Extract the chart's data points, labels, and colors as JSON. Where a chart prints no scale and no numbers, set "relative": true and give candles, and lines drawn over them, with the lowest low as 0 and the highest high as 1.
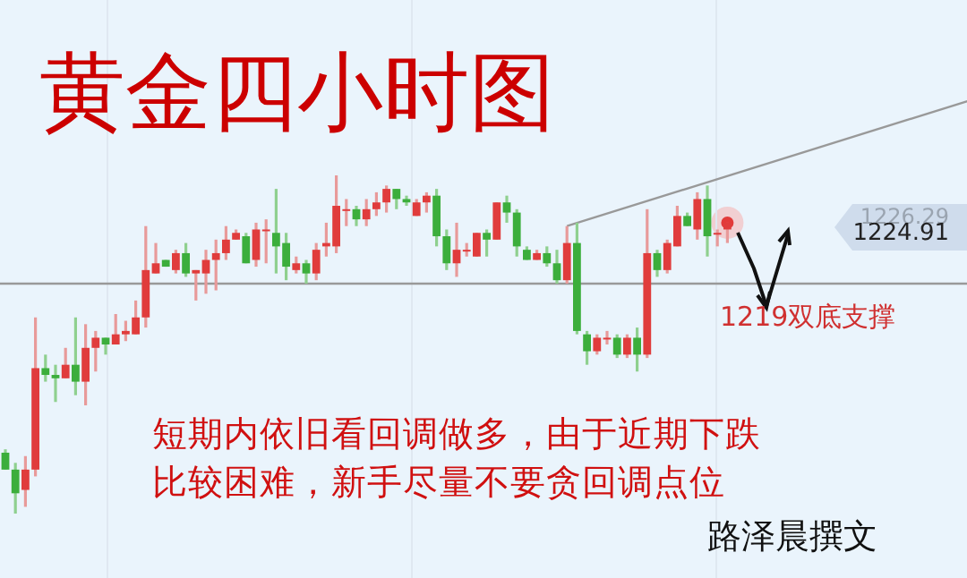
{
  "chart_data": {
    "type": "candlestick",
    "title": "黄金四小时图",
    "relative": true,
    "categories": [
      null,
      null,
      null,
      null,
      null,
      null,
      null,
      null,
      null,
      null,
      null,
      null,
      null,
      null,
      null,
      null,
      null,
      null,
      null,
      null,
      null,
      null,
      null,
      null,
      null,
      null,
      null,
      null,
      null,
      null,
      null,
      null,
      null,
      null,
      null,
      null,
      null,
      null,
      null,
      null,
      null,
      null,
      null,
      null,
      null,
      null,
      null,
      null,
      null,
      null,
      null,
      null,
      null,
      null,
      null,
      null,
      null,
      null,
      null,
      null,
      null,
      null,
      null,
      null,
      null,
      null,
      null,
      null,
      null,
      null,
      null,
      null,
      null,
      null,
      null,
      null,
      null,
      null,
      null,
      null,
      null,
      null,
      null,
      null,
      null,
      null,
      null,
      null,
      null,
      null,
      null,
      null,
      null,
      null,
      null,
      null,
      null
    ],
    "ohlc": [
      [
        0.18,
        0.19,
        0.13,
        0.13
      ],
      [
        0.13,
        0.15,
        0,
        0.06
      ],
      [
        0.07,
        0.17,
        0.02,
        0.13
      ],
      [
        0.13,
        0.58,
        0.11,
        0.43
      ],
      [
        0.43,
        0.47,
        0.39,
        0.41
      ],
      [
        0.41,
        0.44,
        0.33,
        0.4
      ],
      [
        0.4,
        0.49,
        0.4,
        0.44
      ],
      [
        0.44,
        0.58,
        0.35,
        0.39
      ],
      [
        0.39,
        0.56,
        0.32,
        0.49
      ],
      [
        0.49,
        0.54,
        0.42,
        0.52
      ],
      [
        0.52,
        0.52,
        0.47,
        0.5
      ],
      [
        0.5,
        0.59,
        0.5,
        0.53
      ],
      [
        0.53,
        0.57,
        0.51,
        0.54
      ],
      [
        0.53,
        0.63,
        0.53,
        0.58
      ],
      [
        0.58,
        0.85,
        0.55,
        0.72
      ],
      [
        0.71,
        0.8,
        0.71,
        0.74
      ],
      [
        0.75,
        0.75,
        0.73,
        0.73
      ],
      [
        0.72,
        0.78,
        0.71,
        0.77
      ],
      [
        0.77,
        0.8,
        0.7,
        0.71
      ],
      [
        0.71,
        0.72,
        0.63,
        0.72
      ],
      [
        0.71,
        0.78,
        0.65,
        0.75
      ],
      [
        0.75,
        0.81,
        0.66,
        0.77
      ],
      [
        0.77,
        0.85,
        0.75,
        0.81
      ],
      [
        0.81,
        0.84,
        0.81,
        0.83
      ],
      [
        0.82,
        0.83,
        0.74,
        0.74
      ],
      [
        0.75,
        0.86,
        0.73,
        0.84
      ],
      [
        0.84,
        0.87,
        0.74,
        0.84
      ],
      [
        0.83,
        0.96,
        0.71,
        0.79
      ],
      [
        0.8,
        0.83,
        0.69,
        0.73
      ],
      [
        0.72,
        0.76,
        0.71,
        0.74
      ],
      [
        0.74,
        0.75,
        0.68,
        0.71
      ],
      [
        0.71,
        0.8,
        0.69,
        0.78
      ],
      [
        0.79,
        0.86,
        0.76,
        0.8
      ],
      [
        0.79,
        1,
        0.77,
        0.91
      ],
      [
        0.9,
        0.93,
        0.85,
        0.9
      ],
      [
        0.9,
        0.91,
        0.85,
        0.87
      ],
      [
        0.87,
        0.93,
        0.85,
        0.9
      ],
      [
        0.9,
        0.95,
        0.88,
        0.92
      ],
      [
        0.92,
        0.97,
        0.89,
        0.96
      ],
      [
        0.96,
        0.96,
        0.9,
        0.93
      ],
      [
        0.93,
        0.94,
        0.91,
        0.92
      ],
      [
        0.88,
        0.93,
        0.88,
        0.92
      ],
      [
        0.92,
        0.95,
        0.89,
        0.94
      ],
      [
        0.94,
        0.96,
        0.79,
        0.82
      ],
      [
        0.82,
        0.84,
        0.72,
        0.74
      ],
      [
        0.74,
        0.86,
        0.7,
        0.78
      ],
      [
        0.78,
        0.8,
        0.76,
        0.78
      ],
      [
        0.76,
        0.83,
        0.76,
        0.83
      ],
      [
        0.83,
        0.84,
        0.76,
        0.81
      ],
      [
        0.81,
        0.92,
        0.81,
        0.92
      ],
      [
        0.92,
        0.94,
        0.86,
        0.89
      ],
      [
        0.89,
        0.9,
        0.76,
        0.79
      ],
      [
        0.78,
        0.79,
        0.75,
        0.75
      ],
      [
        0.75,
        0.78,
        0.75,
        0.77
      ],
      [
        0.77,
        0.79,
        0.73,
        0.74
      ],
      [
        0.74,
        0.78,
        0.68,
        0.69
      ],
      [
        0.69,
        0.85,
        0.68,
        0.8
      ],
      [
        0.8,
        0.86,
        0.53,
        0.54
      ],
      [
        0.53,
        0.54,
        0.44,
        0.48
      ],
      [
        0.48,
        0.53,
        0.47,
        0.52
      ],
      [
        0.52,
        0.54,
        0.5,
        0.52
      ],
      [
        0.52,
        0.53,
        0.46,
        0.47
      ],
      [
        0.47,
        0.53,
        0.46,
        0.52
      ],
      [
        0.52,
        0.55,
        0.42,
        0.47
      ],
      [
        0.47,
        0.9,
        0.46,
        0.77
      ],
      [
        0.77,
        0.78,
        0.7,
        0.72
      ],
      [
        0.72,
        0.81,
        0.71,
        0.8
      ],
      [
        0.79,
        0.91,
        0.79,
        0.88
      ],
      [
        0.88,
        0.89,
        0.85,
        0.85
      ],
      [
        0.84,
        0.95,
        0.81,
        0.93
      ],
      [
        0.93,
        0.97,
        0.76,
        0.82
      ],
      [
        0.83,
        0.84,
        0.79,
        0.83
      ],
      [
        0.84,
        0.86,
        0.8,
        0.86
      ],
      null,
      null,
      null,
      null,
      null,
      null,
      null,
      null,
      null,
      null,
      null,
      null,
      null,
      null,
      null,
      null,
      null,
      null,
      null,
      null,
      null,
      null,
      null,
      null
    ],
    "series": [
      {
        "type": "line",
        "color": "#999999",
        "values": [
          null,
          null,
          null,
          null,
          null,
          null,
          null,
          null,
          null,
          null,
          null,
          null,
          null,
          null,
          null,
          null,
          null,
          null,
          null,
          null,
          null,
          null,
          null,
          null,
          null,
          null,
          null,
          null,
          null,
          null,
          null,
          null,
          null,
          null,
          null,
          null,
          null,
          null,
          null,
          null,
          null,
          null,
          null,
          null,
          null,
          null,
          null,
          null,
          null,
          null,
          null,
          null,
          null,
          null,
          null,
          null,
          0.85,
          null,
          null,
          null,
          null,
          null,
          null,
          null,
          null,
          null,
          null,
          null,
          null,
          null,
          null,
          null,
          null,
          null,
          null,
          null,
          null,
          null,
          null,
          null,
          null,
          null,
          null,
          null,
          null,
          null,
          null,
          null,
          null,
          null,
          null,
          null,
          null,
          null,
          null,
          null,
          1.22
        ]
      }
    ],
    "ref_lines": [
      {
        "axis": "y",
        "value": 0.68,
        "color": "#999999"
      }
    ],
    "annotations": [
      "1226.29",
      "1224.91",
      "1219双底支撑",
      "短期内依旧看回调做多，由于近期下跌",
      "比较困难，新手尽量不要贪回调点位",
      "路泽晨撰文"
    ]
  }
}
